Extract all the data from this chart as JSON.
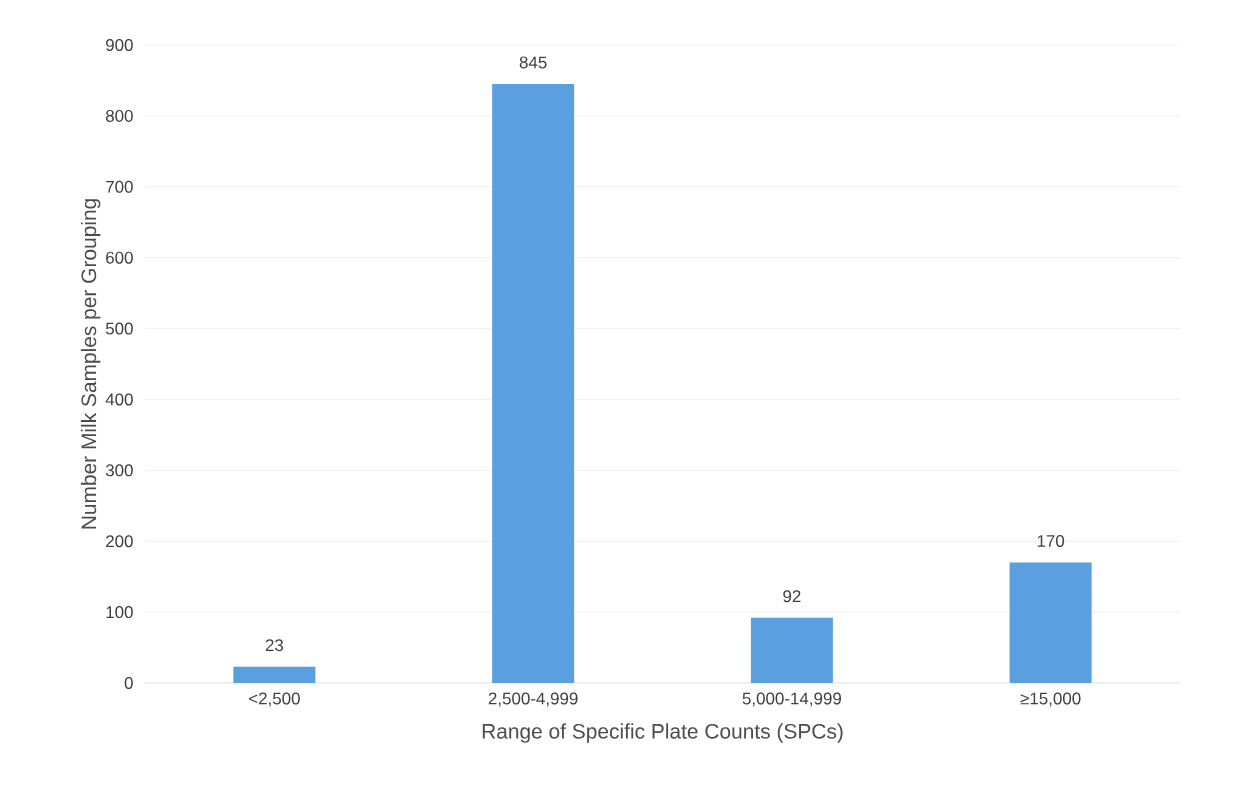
{
  "chart_data": {
    "type": "bar",
    "xlabel": "Range of Specific Plate Counts (SPCs)",
    "ylabel": "Number Milk Samples per Grouping",
    "categories": [
      "<2,500",
      "2,500-4,999",
      "5,000-14,999",
      "≥15,000"
    ],
    "values": [
      23,
      845,
      92,
      170
    ],
    "color": "#5aa0e0",
    "ylim": [
      0,
      900
    ],
    "yticks": [
      0,
      100,
      200,
      300,
      400,
      500,
      600,
      700,
      800,
      900
    ],
    "grid": "y",
    "data_labels": true
  }
}
